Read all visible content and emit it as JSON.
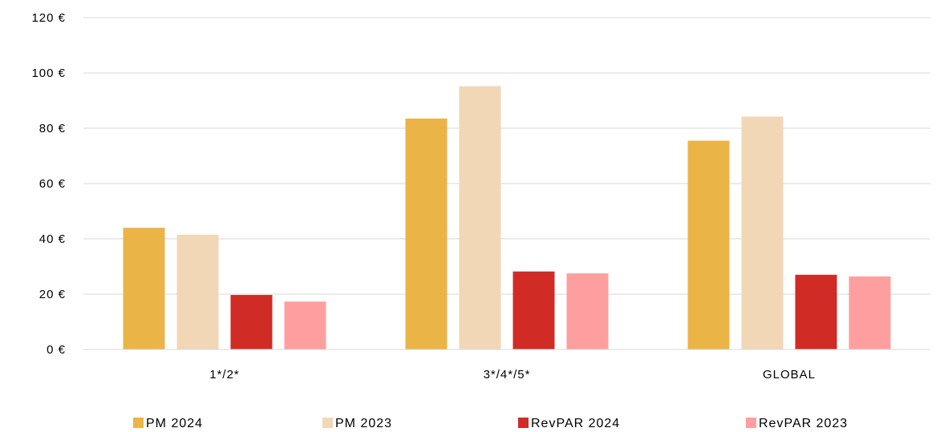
{
  "chart_data": {
    "type": "bar",
    "title": "",
    "xlabel": "",
    "ylabel": "",
    "ylim": [
      0,
      120
    ],
    "y_tick_values": [
      0,
      20,
      40,
      60,
      80,
      100,
      120
    ],
    "y_tick_labels": [
      "0 €",
      "20 €",
      "40 €",
      "60 €",
      "80 €",
      "100 €",
      "120 €"
    ],
    "grid": true,
    "legend_position": "bottom",
    "categories": [
      "1*/2*",
      "3*/4*/5*",
      "GLOBAL"
    ],
    "series": [
      {
        "name": "PM 2024",
        "color": "#EBB447",
        "values": [
          44,
          83.5,
          75.5
        ]
      },
      {
        "name": "PM 2023",
        "color": "#F2D7B6",
        "values": [
          41.5,
          95.2,
          84.2
        ]
      },
      {
        "name": "RevPAR 2024",
        "color": "#D12B25",
        "values": [
          19.7,
          28.2,
          27
        ]
      },
      {
        "name": "RevPAR 2023",
        "color": "#FF9E9E",
        "values": [
          17.3,
          27.5,
          26.4
        ]
      }
    ]
  }
}
